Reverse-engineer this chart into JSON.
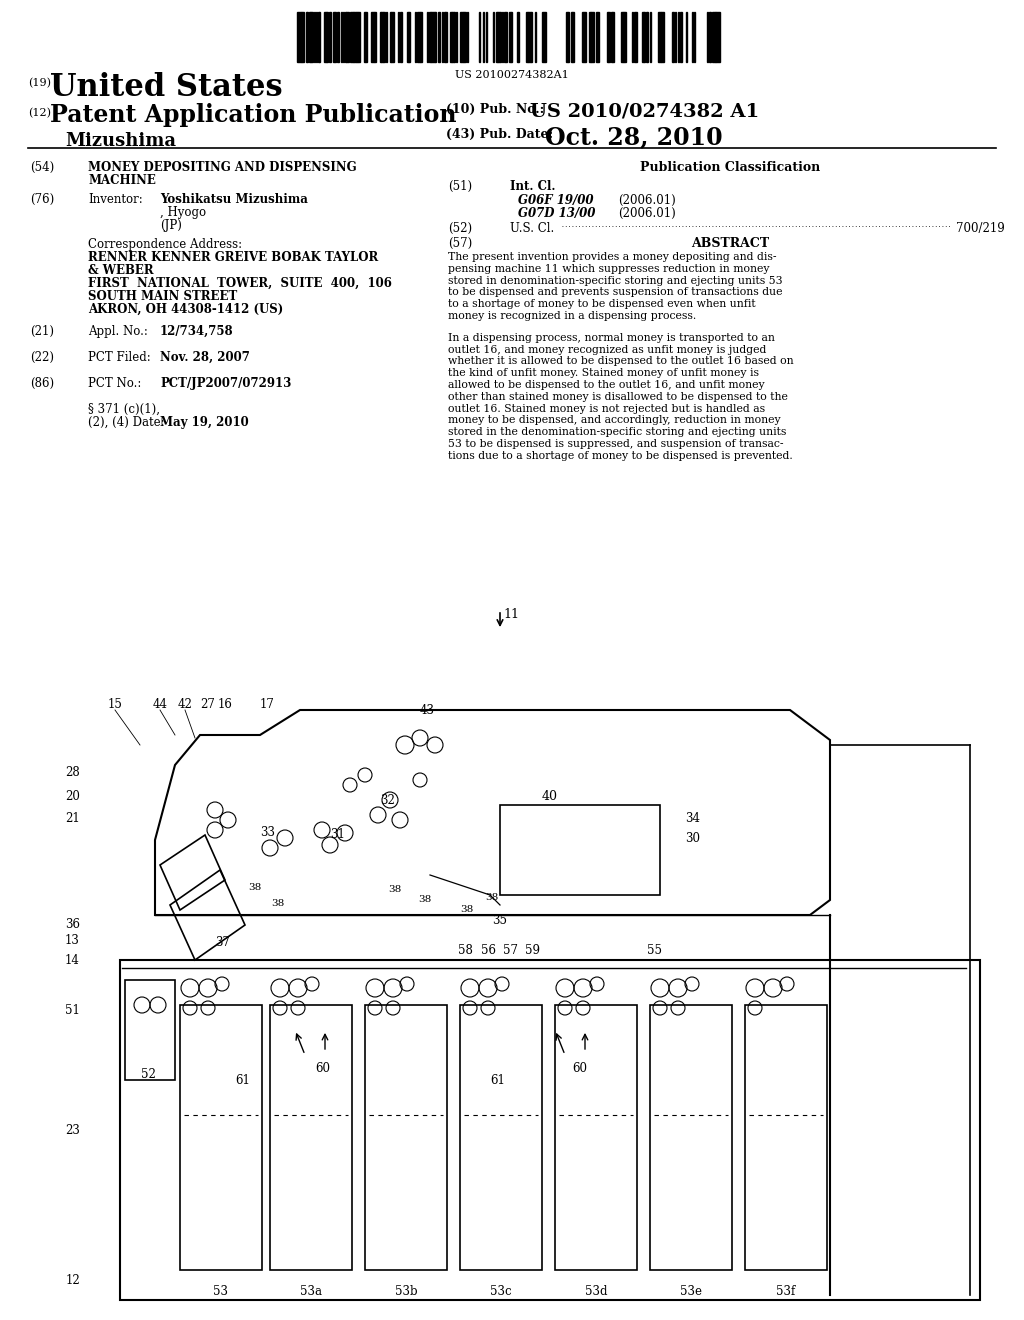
{
  "background_color": "#ffffff",
  "barcode_text": "US 20100274382A1",
  "country": "United States",
  "pub_type_num": "(19)",
  "pub_type_num2": "(12)",
  "pub_type": "Patent Application Publication",
  "inventor_last": "Mizushima",
  "pub_no_label": "(10) Pub. No.:",
  "pub_no": "US 2010/0274382 A1",
  "pub_date_label": "(43) Pub. Date:",
  "pub_date": "Oct. 28, 2010",
  "title_num": "(54)",
  "title_line1": "MONEY DEPOSITING AND DISPENSING",
  "title_line2": "MACHINE",
  "pub_class_header": "Publication Classification",
  "int_cl_label": "Int. Cl.",
  "int_cl_1_code": "G06F 19/00",
  "int_cl_1_date": "(2006.01)",
  "int_cl_2_code": "G07D 13/00",
  "int_cl_2_date": "(2006.01)",
  "us_cl_label": "U.S. Cl. ............................................",
  "us_cl_value": "700/219",
  "abstract_label": "ABSTRACT",
  "abstract_text1": "The present invention provides a money depositing and dis-",
  "abstract_text2": "pensing machine 11 which suppresses reduction in money",
  "abstract_text3": "stored in denomination-specific storing and ejecting units 53",
  "abstract_text4": "to be dispensed and prevents suspension of transactions due",
  "abstract_text5": "to a shortage of money to be dispensed even when unfit",
  "abstract_text6": "money is recognized in a dispensing process.",
  "abstract_text7": "In a dispensing process, normal money is transported to an",
  "abstract_text8": "outlet 16, and money recognized as unfit money is judged",
  "abstract_text9": "whether it is allowed to be dispensed to the outlet 16 based on",
  "abstract_text10": "the kind of unfit money. Stained money of unfit money is",
  "abstract_text11": "allowed to be dispensed to the outlet 16, and unfit money",
  "abstract_text12": "other than stained money is disallowed to be dispensed to the",
  "abstract_text13": "outlet 16. Stained money is not rejected but is handled as",
  "abstract_text14": "money to be dispensed, and accordingly, reduction in money",
  "abstract_text15": "stored in the denomination-specific storing and ejecting units",
  "abstract_text16": "53 to be dispensed is suppressed, and suspension of transac-",
  "abstract_text17": "tions due to a shortage of money to be dispensed is prevented.",
  "inventor_name_bold": "Yoshikatsu Mizushima",
  "inventor_name_rest": ", Hyogo",
  "inventor_jp": "(JP)",
  "corr_addr_label": "Correspondence Address:",
  "corr_addr_line1": "RENNER KENNER GREIVE BOBAK TAYLOR",
  "corr_addr_line2": "& WEBER",
  "corr_addr_line3": "FIRST  NATIONAL  TOWER,  SUITE  400,  106",
  "corr_addr_line4": "SOUTH MAIN STREET",
  "corr_addr_line5": "AKRON, OH 44308-1412 (US)",
  "appl_no_value": "12/734,758",
  "pct_filed_value": "Nov. 28, 2007",
  "pct_no_value": "PCT/JP2007/072913",
  "section_371_value": "May 19, 2010"
}
